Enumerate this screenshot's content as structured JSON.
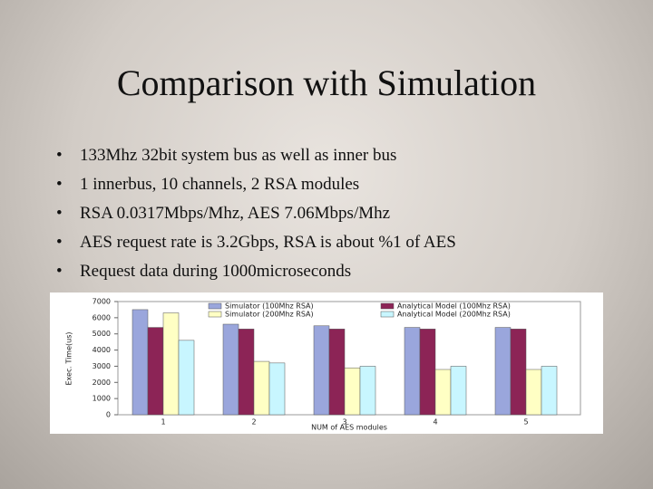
{
  "title": "Comparison with Simulation",
  "bullets": [
    "133Mhz 32bit system bus as well as inner bus",
    "1 innerbus, 10 channels, 2 RSA modules",
    "RSA 0.0317Mbps/Mhz, AES 7.06Mbps/Mhz",
    "AES request rate is 3.2Gbps, RSA is about %1 of AES",
    "Request data during 1000microseconds"
  ],
  "chart_data": {
    "type": "bar",
    "categories": [
      "1",
      "2",
      "3",
      "4",
      "5"
    ],
    "x_label": "NUM of AES modules",
    "y_label": "Exec. Time(us)",
    "ylim": [
      0,
      7000
    ],
    "yticks": [
      0,
      1000,
      2000,
      3000,
      4000,
      5000,
      6000,
      7000
    ],
    "series": [
      {
        "name": "Simulator (100Mhz RSA)",
        "color": "#9aa6dc",
        "values": [
          6500,
          5600,
          5500,
          5400,
          5400
        ]
      },
      {
        "name": "Analytical Model (100Mhz RSA)",
        "color": "#8c2456",
        "values": [
          5400,
          5300,
          5300,
          5300,
          5300
        ]
      },
      {
        "name": "Simulator (200Mhz RSA)",
        "color": "#ffffc4",
        "values": [
          6300,
          3300,
          2900,
          2800,
          2800
        ]
      },
      {
        "name": "Analytical Model (200Mhz RSA)",
        "color": "#c8f6ff",
        "values": [
          4600,
          3200,
          3000,
          3000,
          3000
        ]
      }
    ]
  }
}
